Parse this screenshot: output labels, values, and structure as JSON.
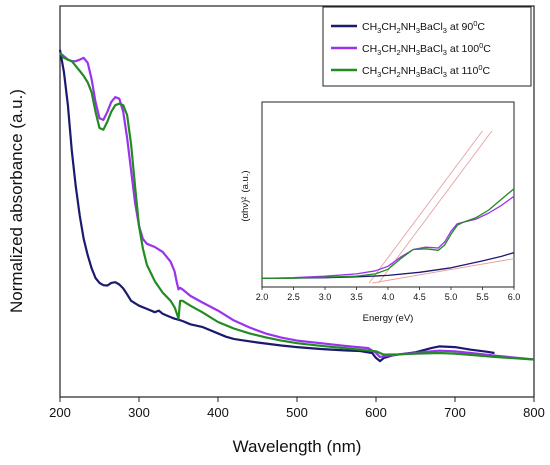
{
  "chart_data": [
    {
      "type": "line",
      "xlabel": "Wavelength (nm)",
      "ylabel": "Normalized absorbance (a.u.)",
      "xlim": [
        200,
        800
      ],
      "ylim": [
        0,
        1
      ],
      "xticks": [
        "200",
        "300",
        "400",
        "500",
        "600",
        "700",
        "800"
      ],
      "legend_position": "top-right",
      "series": [
        {
          "name": "CH3CH2NH3BaCl3 at 90°C",
          "legend_parts": [
            "CH",
            "3",
            "CH",
            "2",
            "NH",
            "3",
            "BaCl",
            "3",
            " at 90",
            "0",
            "C"
          ],
          "color": "#1a1a6e",
          "x": [
            200,
            205,
            210,
            215,
            220,
            225,
            230,
            235,
            240,
            245,
            250,
            255,
            260,
            265,
            270,
            275,
            280,
            285,
            290,
            300,
            310,
            320,
            325,
            330,
            335,
            340,
            345,
            350,
            355,
            365,
            380,
            395,
            410,
            420,
            430,
            450,
            480,
            500,
            530,
            560,
            580,
            595,
            600,
            605,
            610,
            620,
            630,
            650,
            670,
            680,
            700,
            720,
            740,
            750
          ],
          "y": [
            0.97,
            0.9,
            0.8,
            0.66,
            0.55,
            0.46,
            0.39,
            0.34,
            0.3,
            0.27,
            0.255,
            0.248,
            0.247,
            0.255,
            0.257,
            0.25,
            0.238,
            0.22,
            0.2,
            0.185,
            0.175,
            0.165,
            0.17,
            0.16,
            0.155,
            0.15,
            0.145,
            0.142,
            0.138,
            0.128,
            0.12,
            0.105,
            0.09,
            0.083,
            0.079,
            0.072,
            0.063,
            0.058,
            0.052,
            0.048,
            0.046,
            0.04,
            0.025,
            0.015,
            0.025,
            0.032,
            0.036,
            0.042,
            0.055,
            0.06,
            0.058,
            0.05,
            0.044,
            0.04
          ]
        },
        {
          "name": "CH3CH2NH3BaCl3 at 100°C",
          "legend_parts": [
            "CH",
            "3",
            "CH",
            "2",
            "NH",
            "3",
            "BaCl",
            "3",
            " at 100",
            "0",
            "C"
          ],
          "color": "#9933ee",
          "x": [
            200,
            205,
            210,
            215,
            220,
            225,
            230,
            235,
            240,
            245,
            250,
            255,
            260,
            265,
            270,
            275,
            280,
            285,
            290,
            295,
            300,
            305,
            310,
            320,
            330,
            340,
            345,
            348,
            350,
            352,
            355,
            365,
            380,
            400,
            420,
            440,
            460,
            480,
            500,
            530,
            560,
            590,
            600,
            605,
            615,
            630,
            650,
            670,
            680,
            700,
            720,
            750,
            800
          ],
          "y": [
            0.96,
            0.95,
            0.94,
            0.935,
            0.935,
            0.94,
            0.945,
            0.93,
            0.88,
            0.81,
            0.76,
            0.755,
            0.78,
            0.81,
            0.825,
            0.82,
            0.78,
            0.7,
            0.6,
            0.5,
            0.43,
            0.39,
            0.375,
            0.365,
            0.35,
            0.32,
            0.29,
            0.255,
            0.235,
            0.24,
            0.235,
            0.215,
            0.195,
            0.17,
            0.14,
            0.118,
            0.1,
            0.087,
            0.078,
            0.07,
            0.062,
            0.055,
            0.04,
            0.028,
            0.032,
            0.036,
            0.04,
            0.045,
            0.047,
            0.045,
            0.04,
            0.032,
            0.02
          ]
        },
        {
          "name": "CH3CH2NH3BaCl3 at 110°C",
          "legend_parts": [
            "CH",
            "3",
            "CH",
            "2",
            "NH",
            "3",
            "BaCl",
            "3",
            " at 110",
            "0",
            "C"
          ],
          "color": "#228b22",
          "x": [
            200,
            205,
            210,
            215,
            220,
            225,
            230,
            235,
            240,
            245,
            250,
            255,
            260,
            265,
            270,
            275,
            280,
            285,
            290,
            295,
            300,
            305,
            310,
            320,
            330,
            340,
            345,
            348,
            350,
            352,
            355,
            365,
            380,
            400,
            420,
            440,
            460,
            480,
            500,
            530,
            560,
            600,
            610,
            630,
            650,
            680,
            700,
            720,
            750,
            800
          ],
          "y": [
            0.96,
            0.945,
            0.94,
            0.935,
            0.92,
            0.905,
            0.89,
            0.87,
            0.84,
            0.78,
            0.73,
            0.725,
            0.75,
            0.78,
            0.8,
            0.805,
            0.8,
            0.77,
            0.68,
            0.55,
            0.43,
            0.36,
            0.31,
            0.26,
            0.225,
            0.2,
            0.18,
            0.16,
            0.145,
            0.2,
            0.2,
            0.185,
            0.165,
            0.135,
            0.115,
            0.1,
            0.088,
            0.078,
            0.07,
            0.062,
            0.055,
            0.045,
            0.035,
            0.036,
            0.038,
            0.04,
            0.038,
            0.034,
            0.028,
            0.02
          ]
        }
      ]
    },
    {
      "type": "line",
      "xlabel": "Energy (eV)",
      "ylabel": "(αhν)²",
      "ylabel_unit": "(a.u.)",
      "xlim": [
        2.0,
        6.0
      ],
      "ylim": [
        0,
        1
      ],
      "xticks": [
        "2.0",
        "2.5",
        "3.0",
        "3.5",
        "4.0",
        "4.5",
        "5.0",
        "5.5",
        "6.0"
      ],
      "series": [
        {
          "name": "90°C",
          "color": "#1a1a6e",
          "x": [
            2.0,
            2.5,
            3.0,
            3.5,
            4.0,
            4.5,
            5.0,
            5.5,
            5.8,
            6.0
          ],
          "y": [
            0.03,
            0.032,
            0.035,
            0.04,
            0.05,
            0.07,
            0.1,
            0.145,
            0.175,
            0.2
          ]
        },
        {
          "name": "100°C",
          "color": "#9933ee",
          "x": [
            2.0,
            2.5,
            3.0,
            3.5,
            3.8,
            4.0,
            4.2,
            4.4,
            4.6,
            4.8,
            4.9,
            5.0,
            5.1,
            5.2,
            5.4,
            5.6,
            5.8,
            6.0
          ],
          "y": [
            0.03,
            0.035,
            0.045,
            0.06,
            0.08,
            0.11,
            0.17,
            0.22,
            0.235,
            0.23,
            0.27,
            0.34,
            0.39,
            0.4,
            0.42,
            0.46,
            0.51,
            0.57
          ]
        },
        {
          "name": "110°C",
          "color": "#228b22",
          "x": [
            2.0,
            2.5,
            3.0,
            3.5,
            3.8,
            4.0,
            4.2,
            4.4,
            4.6,
            4.8,
            4.9,
            5.0,
            5.1,
            5.2,
            5.4,
            5.6,
            5.8,
            6.0
          ],
          "y": [
            0.03,
            0.032,
            0.038,
            0.045,
            0.06,
            0.09,
            0.16,
            0.22,
            0.225,
            0.215,
            0.25,
            0.32,
            0.38,
            0.4,
            0.43,
            0.48,
            0.55,
            0.62
          ]
        }
      ],
      "fit_lines": [
        {
          "color": "#e8a0a0",
          "x": [
            3.7,
            5.5
          ],
          "y": [
            0.0,
            1.0
          ]
        },
        {
          "color": "#e8a0a0",
          "x": [
            3.85,
            5.65
          ],
          "y": [
            0.0,
            1.0
          ]
        },
        {
          "color": "#e8a0a0",
          "x": [
            3.75,
            6.0
          ],
          "y": [
            0.0,
            0.16
          ]
        }
      ]
    }
  ]
}
